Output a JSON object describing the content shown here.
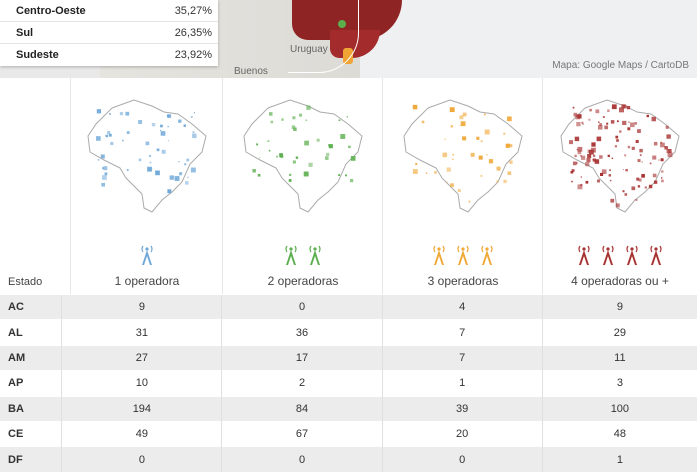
{
  "map": {
    "label_uruguay": "Uruguay",
    "label_buenos": "Buenos",
    "credit": "Mapa: Google Maps / CartoDB"
  },
  "regions": [
    {
      "name": "Centro-Oeste",
      "value": "35,27%"
    },
    {
      "name": "Sul",
      "value": "26,35%"
    },
    {
      "name": "Sudeste",
      "value": "23,92%"
    }
  ],
  "header": {
    "estado_label": "Estado",
    "columns": [
      {
        "label": "1 operadora",
        "color": "#6fa8d8",
        "towers": 1
      },
      {
        "label": "2 operadoras",
        "color": "#5caf4f",
        "towers": 2
      },
      {
        "label": "3 operadoras",
        "color": "#f0a838",
        "towers": 3
      },
      {
        "label": "4 operadoras ou +",
        "color": "#a83232",
        "towers": 4
      }
    ]
  },
  "rows": [
    {
      "estado": "AC",
      "values": [
        "9",
        "0",
        "4",
        "9"
      ]
    },
    {
      "estado": "AL",
      "values": [
        "31",
        "36",
        "7",
        "29"
      ]
    },
    {
      "estado": "AM",
      "values": [
        "27",
        "17",
        "7",
        "11"
      ]
    },
    {
      "estado": "AP",
      "values": [
        "10",
        "2",
        "1",
        "3"
      ]
    },
    {
      "estado": "BA",
      "values": [
        "194",
        "84",
        "39",
        "100"
      ]
    },
    {
      "estado": "CE",
      "values": [
        "49",
        "67",
        "20",
        "48"
      ]
    },
    {
      "estado": "DF",
      "values": [
        "0",
        "0",
        "0",
        "1"
      ]
    }
  ]
}
